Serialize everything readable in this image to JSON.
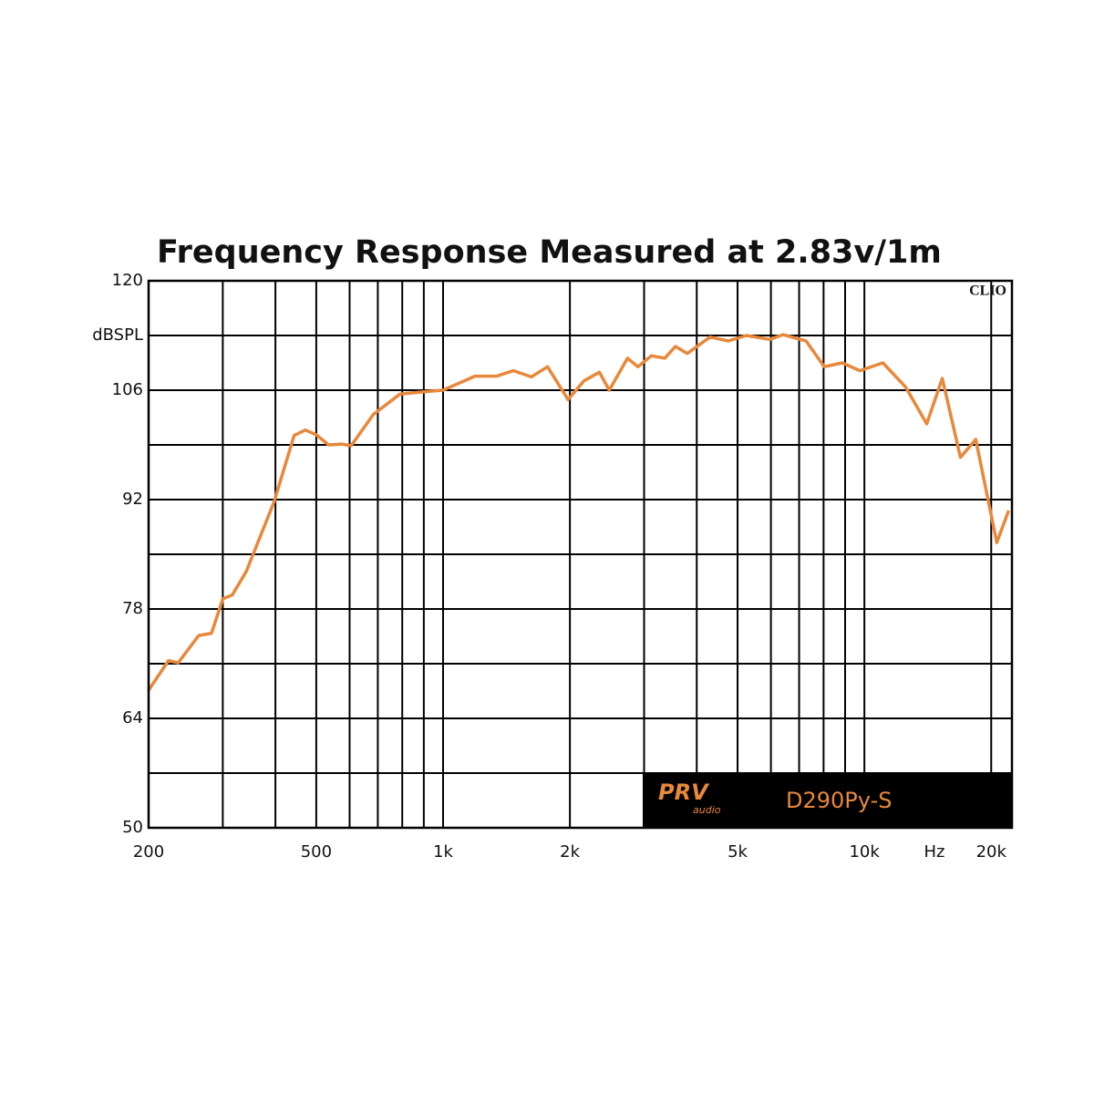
{
  "chart_data": {
    "type": "line",
    "title": "Frequency Response Measured at 2.83v/1m",
    "corner_label": "CLIO",
    "x_unit_label": "Hz",
    "xscale": "log",
    "xlim": [
      200,
      22400
    ],
    "xticks": [
      200,
      500,
      {
        "value": 1000,
        "label": "1k"
      },
      {
        "value": 2000,
        "label": "2k"
      },
      {
        "value": 5000,
        "label": "5k"
      },
      {
        "value": 10000,
        "label": "10k"
      },
      {
        "value": 20000,
        "label": "20k"
      }
    ],
    "xgrid": [
      300,
      400,
      600,
      700,
      800,
      900,
      3000,
      4000,
      6000,
      7000,
      8000,
      9000
    ],
    "ylim": [
      50,
      120
    ],
    "yticks": [
      50,
      64,
      78,
      92,
      106,
      {
        "value": 113,
        "label": "dBSPL"
      },
      120
    ],
    "ygrid": [
      57,
      71,
      85,
      99
    ],
    "grid": true,
    "x": [
      200,
      223,
      235,
      263,
      282,
      300,
      316,
      341,
      397,
      443,
      471,
      500,
      535,
      575,
      605,
      683,
      790,
      900,
      1000,
      1190,
      1340,
      1470,
      1620,
      1770,
      1980,
      2160,
      2350,
      2480,
      2740,
      2900,
      3120,
      3360,
      3560,
      3800,
      4300,
      4750,
      5250,
      5960,
      6410,
      7270,
      8030,
      8860,
      9760,
      11060,
      12530,
      14060,
      15310,
      16900,
      18380,
      20620,
      22000
    ],
    "series": [
      {
        "name": "D290Py-S",
        "color": "#e8883a",
        "values": [
          67.6,
          71.4,
          71.1,
          74.6,
          74.9,
          79.3,
          79.8,
          82.8,
          91.7,
          100.2,
          100.9,
          100.3,
          99.0,
          99.1,
          98.9,
          102.9,
          105.5,
          105.8,
          106.0,
          107.8,
          107.8,
          108.5,
          107.7,
          109.0,
          104.8,
          107.2,
          108.3,
          106.0,
          110.1,
          109.0,
          110.4,
          110.1,
          111.6,
          110.7,
          112.8,
          112.3,
          113.0,
          112.5,
          113.1,
          112.3,
          109.0,
          109.5,
          108.5,
          109.5,
          106.4,
          101.7,
          107.5,
          97.4,
          99.7,
          86.5,
          90.6
        ]
      }
    ],
    "legend": {
      "brand": "PRV",
      "brand_sub": "audio"
    }
  }
}
